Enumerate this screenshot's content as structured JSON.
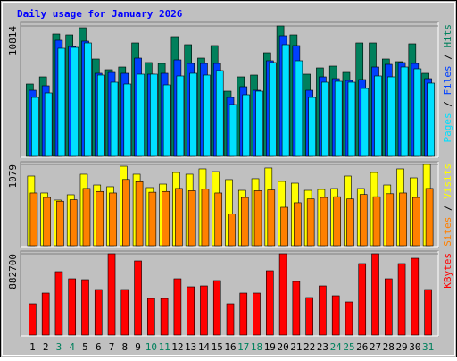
{
  "chart_data": [
    {
      "type": "bar",
      "title": "Daily usage for January 2026",
      "categories": [
        "1",
        "2",
        "3",
        "4",
        "5",
        "6",
        "7",
        "8",
        "9",
        "10",
        "11",
        "12",
        "13",
        "14",
        "15",
        "16",
        "17",
        "18",
        "19",
        "20",
        "21",
        "22",
        "23",
        "24",
        "25",
        "26",
        "27",
        "28",
        "29",
        "30",
        "31"
      ],
      "category_colors": [
        "#000000",
        "#000000",
        "#00805c",
        "#00805c",
        "#000000",
        "#000000",
        "#000000",
        "#000000",
        "#000000",
        "#00805c",
        "#00805c",
        "#000000",
        "#000000",
        "#000000",
        "#000000",
        "#000000",
        "#00805c",
        "#00805c",
        "#000000",
        "#000000",
        "#000000",
        "#000000",
        "#000000",
        "#00805c",
        "#00805c",
        "#000000",
        "#000000",
        "#000000",
        "#000000",
        "#000000",
        "#00805c"
      ],
      "legend_separator": " / ",
      "ylim": [
        0,
        10814
      ],
      "yticks": [
        10814
      ],
      "series": [
        {
          "name": "Hits",
          "color": "#00805c",
          "values": [
            6000,
            6592,
            10148,
            10074,
            10666,
            8074,
            7185,
            7407,
            9407,
            7778,
            7704,
            9926,
            9259,
            8148,
            9185,
            5407,
            6592,
            6741,
            8592,
            10814,
            10074,
            6815,
            7333,
            7481,
            6963,
            9407,
            9407,
            8074,
            7852,
            9333,
            6889
          ]
        },
        {
          "name": "Files",
          "color": "#0040ff",
          "values": [
            5481,
            5852,
            9630,
            9111,
            9556,
            6889,
            6963,
            6889,
            8148,
            6815,
            6889,
            8000,
            7704,
            7704,
            7704,
            4889,
            5778,
            5481,
            7926,
            10000,
            9185,
            5481,
            6592,
            6444,
            6296,
            6370,
            7407,
            7630,
            7778,
            7704,
            6444
          ]
        },
        {
          "name": "Pages",
          "color": "#00e0ff",
          "values": [
            4889,
            5259,
            8963,
            9037,
            9407,
            6741,
            6148,
            6000,
            6815,
            6815,
            5926,
            6667,
            6889,
            6741,
            7111,
            4296,
            5111,
            5407,
            7778,
            9259,
            7926,
            4889,
            6148,
            6222,
            6148,
            5630,
            6667,
            6593,
            7407,
            7259,
            6074
          ]
        }
      ]
    },
    {
      "type": "bar",
      "legend_separator": " / ",
      "ylim": [
        0,
        1079
      ],
      "yticks": [
        1079
      ],
      "series": [
        {
          "name": "Visits",
          "color": "#ffff00",
          "values": [
            925,
            700,
            605,
            676,
            949,
            806,
            783,
            1055,
            949,
            771,
            818,
            972,
            949,
            1020,
            984,
            878,
            735,
            890,
            1032,
            854,
            830,
            735,
            747,
            759,
            925,
            759,
            972,
            806,
            1020,
            901,
            1079
          ]
        },
        {
          "name": "Sites",
          "color": "#ff8000",
          "values": [
            700,
            640,
            590,
            610,
            760,
            720,
            700,
            880,
            850,
            710,
            720,
            760,
            730,
            750,
            700,
            420,
            640,
            730,
            740,
            510,
            570,
            620,
            640,
            650,
            620,
            680,
            650,
            690,
            700,
            640,
            760
          ]
        }
      ]
    },
    {
      "type": "bar",
      "ylim": [
        0,
        882700
      ],
      "yticks": [
        882700
      ],
      "series": [
        {
          "name": "KBytes",
          "color": "#ff0000",
          "values": [
            339500,
            455900,
            688700,
            611100,
            601400,
            494700,
            882700,
            494700,
            805100,
            397700,
            397700,
            611100,
            523800,
            533500,
            591700,
            339500,
            455900,
            455900,
            698400,
            882700,
            582000,
            407400,
            533500,
            426800,
            358900,
            776000,
            882700,
            611100,
            776000,
            834200,
            494700
          ]
        }
      ]
    }
  ]
}
